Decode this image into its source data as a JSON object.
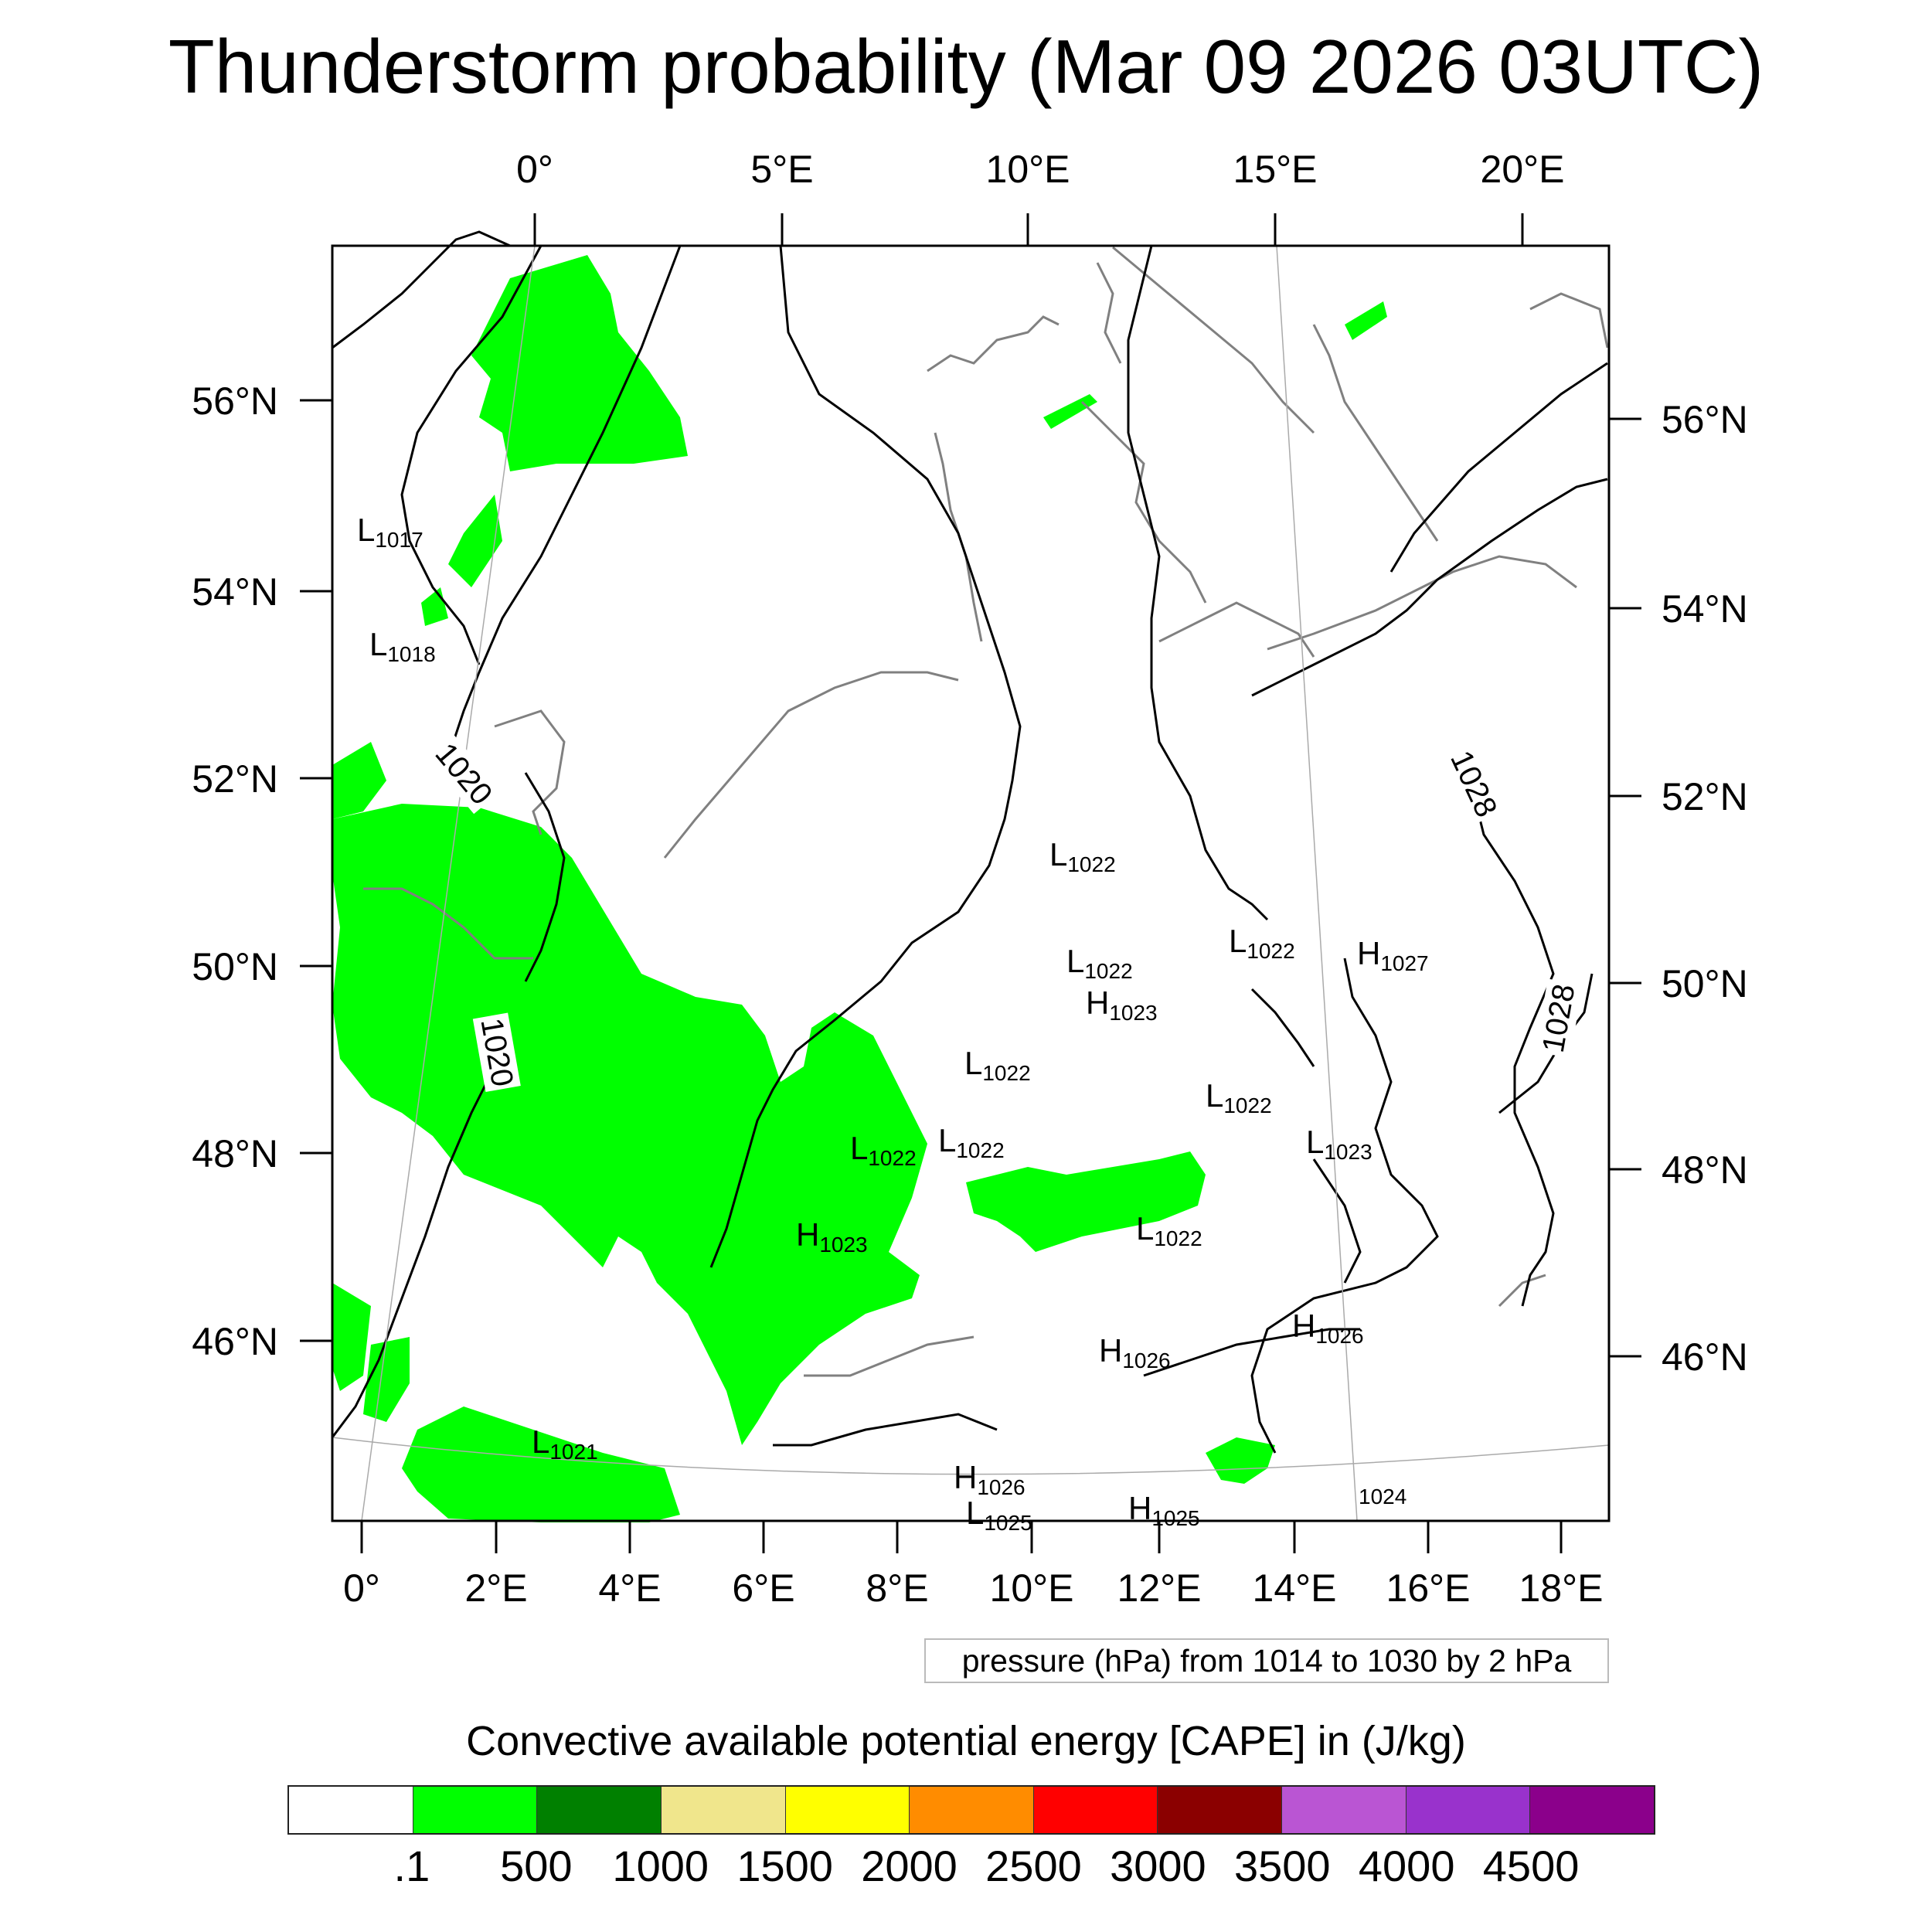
{
  "title": "Thunderstorm probability (Mar 09 2026 03UTC)",
  "axes": {
    "top_lon_labels": [
      "0°",
      "5°E",
      "10°E",
      "15°E",
      "20°E"
    ],
    "bottom_lon_labels": [
      "0°",
      "2°E",
      "4°E",
      "6°E",
      "8°E",
      "10°E",
      "12°E",
      "14°E",
      "16°E",
      "18°E"
    ],
    "left_lat_labels": [
      "56°N",
      "54°N",
      "52°N",
      "50°N",
      "48°N",
      "46°N"
    ],
    "right_lat_labels": [
      "56°N",
      "54°N",
      "52°N",
      "50°N",
      "48°N",
      "46°N"
    ]
  },
  "pressure_centers": [
    {
      "type": "L",
      "value": "1017"
    },
    {
      "type": "L",
      "value": "1018"
    },
    {
      "type": "L",
      "value": "1022"
    },
    {
      "type": "L",
      "value": "1022"
    },
    {
      "type": "H",
      "value": "1023"
    },
    {
      "type": "L",
      "value": "1022"
    },
    {
      "type": "H",
      "value": "1027"
    },
    {
      "type": "L",
      "value": "1022"
    },
    {
      "type": "L",
      "value": "1022"
    },
    {
      "type": "L",
      "value": "1023"
    },
    {
      "type": "L",
      "value": "1022"
    },
    {
      "type": "L",
      "value": "1022"
    },
    {
      "type": "H",
      "value": "1023"
    },
    {
      "type": "L",
      "value": "1022"
    },
    {
      "type": "H",
      "value": "1026"
    },
    {
      "type": "H",
      "value": "1026"
    },
    {
      "type": "L",
      "value": "1021"
    },
    {
      "type": "H",
      "value": "1026"
    },
    {
      "type": "L",
      "value": "1025"
    },
    {
      "type": "H",
      "value": "1025"
    },
    {
      "type": "",
      "value": "1024"
    }
  ],
  "contour_labels": [
    "1020",
    "1020",
    "1028",
    "1028"
  ],
  "contour_note": "pressure (hPa) from 1014 to 1030 by 2 hPa",
  "colorbar": {
    "title": "Convective available potential energy [CAPE] in (J/kg)",
    "colors": [
      "#ffffff",
      "#00ff00",
      "#008000",
      "#f0e68c",
      "#ffff00",
      "#ff8c00",
      "#ff0000",
      "#8b0000",
      "#ba55d3",
      "#9932cc",
      "#8b008b"
    ],
    "labels": [
      ".1",
      "500",
      "1000",
      "1500",
      "2000",
      "2500",
      "3000",
      "3500",
      "4000",
      "4500"
    ]
  },
  "colors": {
    "cape_green": "#00ff00",
    "coastline": "#808080",
    "isobar": "#000000"
  }
}
